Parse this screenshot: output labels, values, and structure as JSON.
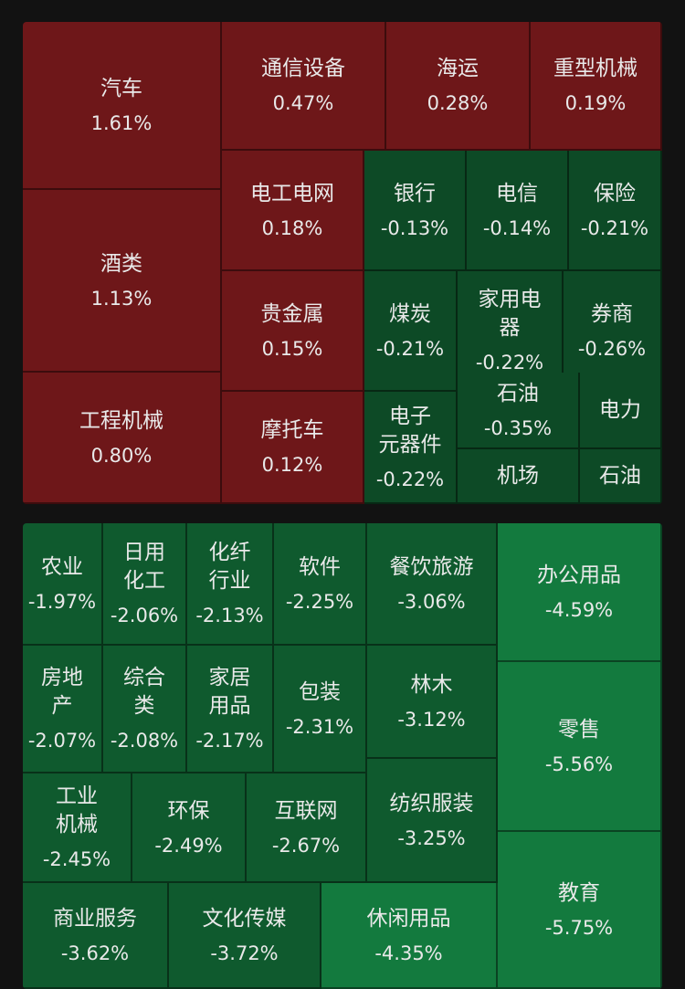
{
  "colors": {
    "background": "#121212",
    "up": "#6e1719",
    "down_light": "#0d4a26",
    "down_mid": "#0f5a2e",
    "down_heavy": "#137a3e"
  },
  "chart_data": {
    "type": "treemap",
    "groups": [
      {
        "name": "",
        "items": [
          {
            "name": "汽车",
            "value": "1.61%",
            "change": 1.61
          },
          {
            "name": "酒类",
            "value": "1.13%",
            "change": 1.13
          },
          {
            "name": "工程机械",
            "value": "0.80%",
            "change": 0.8
          },
          {
            "name": "通信设备",
            "value": "0.47%",
            "change": 0.47
          },
          {
            "name": "海运",
            "value": "0.28%",
            "change": 0.28
          },
          {
            "name": "重型机械",
            "value": "0.19%",
            "change": 0.19
          },
          {
            "name": "电工电网",
            "value": "0.18%",
            "change": 0.18
          },
          {
            "name": "贵金属",
            "value": "0.15%",
            "change": 0.15
          },
          {
            "name": "摩托车",
            "value": "0.12%",
            "change": 0.12
          },
          {
            "name": "银行",
            "value": "-0.13%",
            "change": -0.13
          },
          {
            "name": "电信",
            "value": "-0.14%",
            "change": -0.14
          },
          {
            "name": "保险",
            "value": "-0.21%",
            "change": -0.21
          },
          {
            "name": "煤炭",
            "value": "-0.21%",
            "change": -0.21
          },
          {
            "name": "家用电\n器",
            "value": "-0.22%",
            "change": -0.22
          },
          {
            "name": "券商",
            "value": "-0.26%",
            "change": -0.26
          },
          {
            "name": "电子\n元器件",
            "value": "-0.22%",
            "change": -0.22
          },
          {
            "name": "石油",
            "value": "-0.35%",
            "change": -0.35
          },
          {
            "name": "电力",
            "value": "",
            "change": null
          },
          {
            "name": "机场",
            "value": "",
            "change": null
          },
          {
            "name": "石油",
            "value": "",
            "change": null
          }
        ]
      },
      {
        "name": "",
        "items": [
          {
            "name": "农业",
            "value": "-1.97%",
            "change": -1.97
          },
          {
            "name": "日用\n化工",
            "value": "-2.06%",
            "change": -2.06
          },
          {
            "name": "化纤\n行业",
            "value": "-2.13%",
            "change": -2.13
          },
          {
            "name": "软件",
            "value": "-2.25%",
            "change": -2.25
          },
          {
            "name": "餐饮旅游",
            "value": "-3.06%",
            "change": -3.06
          },
          {
            "name": "办公用品",
            "value": "-4.59%",
            "change": -4.59
          },
          {
            "name": "房地\n产",
            "value": "-2.07%",
            "change": -2.07
          },
          {
            "name": "综合\n类",
            "value": "-2.08%",
            "change": -2.08
          },
          {
            "name": "家居\n用品",
            "value": "-2.17%",
            "change": -2.17
          },
          {
            "name": "包装",
            "value": "-2.31%",
            "change": -2.31
          },
          {
            "name": "林木",
            "value": "-3.12%",
            "change": -3.12
          },
          {
            "name": "零售",
            "value": "-5.56%",
            "change": -5.56
          },
          {
            "name": "工业\n机械",
            "value": "-2.45%",
            "change": -2.45
          },
          {
            "name": "环保",
            "value": "-2.49%",
            "change": -2.49
          },
          {
            "name": "互联网",
            "value": "-2.67%",
            "change": -2.67
          },
          {
            "name": "纺织服装",
            "value": "-3.25%",
            "change": -3.25
          },
          {
            "name": "教育",
            "value": "-5.75%",
            "change": -5.75
          },
          {
            "name": "商业服务",
            "value": "-3.62%",
            "change": -3.62
          },
          {
            "name": "文化传媒",
            "value": "-3.72%",
            "change": -3.72
          },
          {
            "name": "休闲用品",
            "value": "-4.35%",
            "change": -4.35
          }
        ]
      }
    ]
  }
}
